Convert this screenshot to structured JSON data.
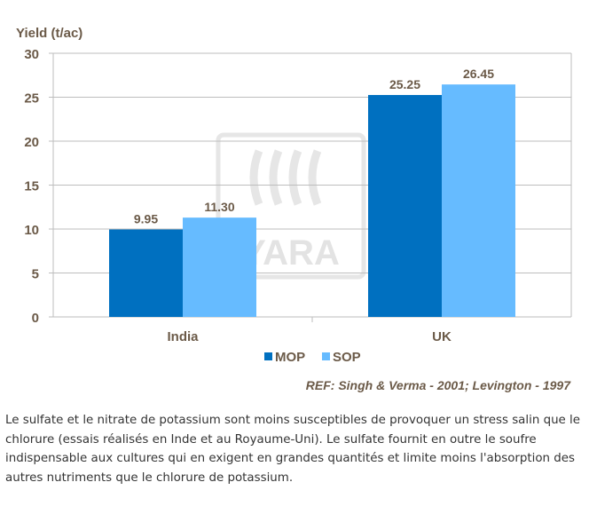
{
  "chart_data": {
    "type": "bar",
    "ylabel": "Yield (t/ac)",
    "categories": [
      "India",
      "UK"
    ],
    "series": [
      {
        "name": "MOP",
        "values": [
          9.95,
          25.25
        ],
        "labels": [
          "9.95",
          "25.25"
        ],
        "color": "#0070c0"
      },
      {
        "name": "SOP",
        "values": [
          11.3,
          26.45
        ],
        "labels": [
          "11.30",
          "26.45"
        ],
        "color": "#66bbff"
      }
    ],
    "ylim": [
      0,
      30
    ],
    "yticks": [
      "0",
      "5",
      "10",
      "15",
      "20",
      "25",
      "30"
    ],
    "grid": true,
    "legend": "bottom",
    "reference": "REF: Singh & Verma -  2001; Levington - 1997",
    "watermark": "YARA"
  },
  "caption": "Le sulfate et le nitrate de potassium sont moins susceptibles de provoquer un stress salin que le chlorure (essais réalisés en Inde et au Royaume-Uni). Le sulfate fournit en outre le soufre indispensable aux cultures qui en exigent en grandes quantités et limite moins l'absorption des autres nutriments que le chlorure de potassium."
}
